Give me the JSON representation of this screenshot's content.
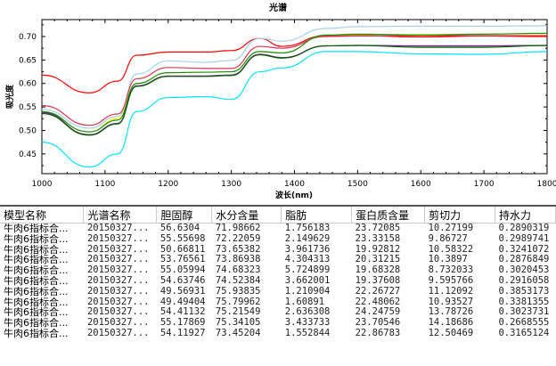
{
  "chart_data": {
    "type": "line",
    "title": "光谱",
    "xlabel": "波长(nm)",
    "ylabel": "吸光度",
    "xlim": [
      1000,
      1800
    ],
    "ylim": [
      0.408,
      0.736
    ],
    "xticks": [
      1000,
      1100,
      1200,
      1300,
      1400,
      1500,
      1600,
      1700,
      1800
    ],
    "yticks": [
      "0.45",
      "0.50",
      "0.55",
      "0.60",
      "0.65",
      "0.70"
    ],
    "x": [
      1000,
      1075,
      1120,
      1150,
      1200,
      1260,
      1300,
      1345,
      1380,
      1450,
      1500,
      1600,
      1700,
      1800
    ],
    "series": [
      {
        "name": "s1",
        "color": "#ff0000",
        "values": [
          0.618,
          0.58,
          0.605,
          0.66,
          0.667,
          0.667,
          0.67,
          0.696,
          0.679,
          0.702,
          0.702,
          0.699,
          0.701,
          0.7
        ]
      },
      {
        "name": "s2",
        "color": "#a6d2e6",
        "values": [
          0.545,
          0.505,
          0.53,
          0.62,
          0.648,
          0.645,
          0.649,
          0.696,
          0.69,
          0.717,
          0.721,
          0.722,
          0.722,
          0.723
        ]
      },
      {
        "name": "s3",
        "color": "#dd3355",
        "values": [
          0.553,
          0.511,
          0.535,
          0.61,
          0.634,
          0.632,
          0.632,
          0.679,
          0.675,
          0.7,
          0.701,
          0.702,
          0.702,
          0.702
        ]
      },
      {
        "name": "s4",
        "color": "#ffee00",
        "values": [
          0.54,
          0.497,
          0.525,
          0.6,
          0.623,
          0.624,
          0.625,
          0.668,
          0.665,
          0.703,
          0.704,
          0.704,
          0.705,
          0.706
        ]
      },
      {
        "name": "s5",
        "color": "#1a8a1a",
        "values": [
          0.54,
          0.497,
          0.522,
          0.6,
          0.623,
          0.624,
          0.625,
          0.668,
          0.665,
          0.703,
          0.705,
          0.703,
          0.705,
          0.707
        ]
      },
      {
        "name": "s6",
        "color": "#7a1a8a",
        "values": [
          0.538,
          0.491,
          0.515,
          0.595,
          0.616,
          0.616,
          0.618,
          0.662,
          0.655,
          0.68,
          0.681,
          0.68,
          0.68,
          0.681
        ]
      },
      {
        "name": "s7",
        "color": "#006000",
        "values": [
          0.536,
          0.49,
          0.514,
          0.594,
          0.615,
          0.615,
          0.617,
          0.661,
          0.654,
          0.68,
          0.681,
          0.677,
          0.677,
          0.681
        ]
      },
      {
        "name": "s8",
        "color": "#00e5ff",
        "values": [
          0.475,
          0.422,
          0.45,
          0.54,
          0.57,
          0.572,
          0.566,
          0.625,
          0.633,
          0.668,
          0.668,
          0.663,
          0.662,
          0.668
        ]
      }
    ]
  },
  "table": {
    "headers": [
      "模型名称",
      "光谱名称",
      "胆固醇",
      "水分含量",
      "脂肪",
      "蛋白质含量",
      "剪切力",
      "持水力"
    ],
    "rows": [
      [
        "牛肉6指标合...",
        "20150327...",
        "56.6304",
        "71.98662",
        "1.756183",
        "23.72085",
        "10.27199",
        "0.2890319"
      ],
      [
        "牛肉6指标合...",
        "20150327...",
        "55.55698",
        "72.22059",
        "2.149629",
        "23.33158",
        "9.86727",
        "0.2989741"
      ],
      [
        "牛肉6指标合...",
        "20150327...",
        "50.66811",
        "73.65382",
        "3.961736",
        "19.92812",
        "10.58322",
        "0.3241072"
      ],
      [
        "牛肉6指标合...",
        "20150327...",
        "53.76561",
        "73.86938",
        "4.304313",
        "20.31215",
        "10.3897",
        "0.2876849"
      ],
      [
        "牛肉6指标合...",
        "20150327...",
        "55.05994",
        "74.68323",
        "5.724899",
        "19.68328",
        "8.732033",
        "0.3020453"
      ],
      [
        "牛肉6指标合...",
        "20150327...",
        "54.63746",
        "74.52384",
        "3.662001",
        "19.37608",
        "9.595766",
        "0.2916058"
      ],
      [
        "牛肉6指标合...",
        "20150327...",
        "49.56931",
        "75.93835",
        "1.210904",
        "22.26727",
        "11.12092",
        "0.3853173"
      ],
      [
        "牛肉6指标合...",
        "20150327...",
        "49.49404",
        "75.79962",
        "1.60891",
        "22.48062",
        "10.93527",
        "0.3381355"
      ],
      [
        "牛肉6指标合...",
        "20150327...",
        "54.41132",
        "75.21549",
        "2.636308",
        "24.24759",
        "13.78726",
        "0.3023731"
      ],
      [
        "牛肉6指标合...",
        "20150327...",
        "55.17869",
        "75.34105",
        "3.433733",
        "23.70546",
        "14.18686",
        "0.2668555"
      ],
      [
        "牛肉6指标合...",
        "20150327...",
        "54.11927",
        "73.45204",
        "1.552844",
        "22.86783",
        "12.50469",
        "0.3165124"
      ]
    ]
  }
}
